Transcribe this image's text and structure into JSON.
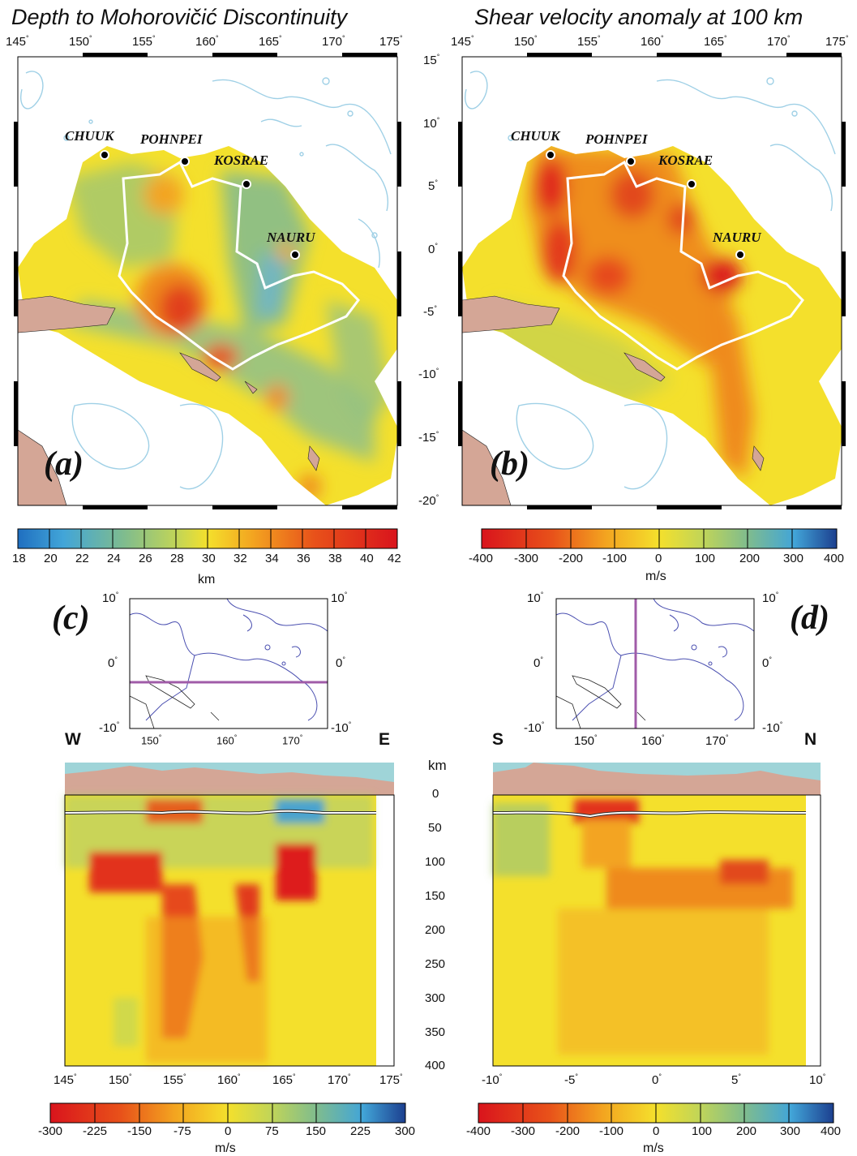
{
  "map_a": {
    "title": "Depth to Mohorovičić Discontinuity",
    "letter": "(a)",
    "lon_ticks": [
      "145",
      "150",
      "155",
      "160",
      "165",
      "170",
      "175"
    ],
    "islands": [
      "CHUUK",
      "POHNPEI",
      "KOSRAE",
      "NAURU"
    ]
  },
  "map_b": {
    "title": "Shear velocity anomaly at 100 km",
    "letter": "(b)",
    "lon_ticks": [
      "145",
      "150",
      "155",
      "160",
      "165",
      "170",
      "175"
    ],
    "islands": [
      "CHUUK",
      "POHNPEI",
      "KOSRAE",
      "NAURU"
    ]
  },
  "lat_ticks": [
    "15",
    "10",
    "5",
    "0",
    "-5",
    "-10",
    "-15",
    "-20"
  ],
  "colorbar_a": {
    "ticks": [
      "18",
      "20",
      "22",
      "24",
      "26",
      "28",
      "30",
      "32",
      "34",
      "36",
      "38",
      "40",
      "42"
    ],
    "unit": "km"
  },
  "colorbar_b": {
    "ticks": [
      "-400",
      "-300",
      "-200",
      "-100",
      "0",
      "100",
      "200",
      "300",
      "400"
    ],
    "unit": "m/s"
  },
  "inset_c": {
    "letter": "(c)",
    "lat_ticks": [
      "10",
      "0",
      "-10"
    ],
    "lon_ticks": [
      "150",
      "160",
      "170"
    ]
  },
  "inset_d": {
    "letter": "(d)",
    "lat_ticks": [
      "10",
      "0",
      "-10"
    ],
    "lon_ticks": [
      "150",
      "160",
      "170"
    ]
  },
  "section_c": {
    "left_dir": "W",
    "right_dir": "E",
    "x_ticks": [
      "145",
      "150",
      "155",
      "160",
      "165",
      "170",
      "175"
    ]
  },
  "section_d": {
    "left_dir": "S",
    "right_dir": "N",
    "x_ticks": [
      "-10",
      "-5",
      "0",
      "5",
      "10"
    ]
  },
  "depth_axis": {
    "unit": "km",
    "ticks": [
      "0",
      "50",
      "100",
      "150",
      "200",
      "250",
      "300",
      "350",
      "400"
    ]
  },
  "colorbar_c": {
    "ticks": [
      "-300",
      "-225",
      "-150",
      "-75",
      "0",
      "75",
      "150",
      "225",
      "300"
    ],
    "unit": "m/s"
  },
  "colorbar_d": {
    "ticks": [
      "-400",
      "-300",
      "-200",
      "-100",
      "0",
      "100",
      "200",
      "300",
      "400"
    ],
    "unit": "m/s"
  },
  "colors": {
    "land": "#d4a696",
    "ocean_contour": "#9fd0e6",
    "plateau_outline": "#ffffff",
    "profile_line": "#a05ca8",
    "background_field": "#f6e22a"
  }
}
